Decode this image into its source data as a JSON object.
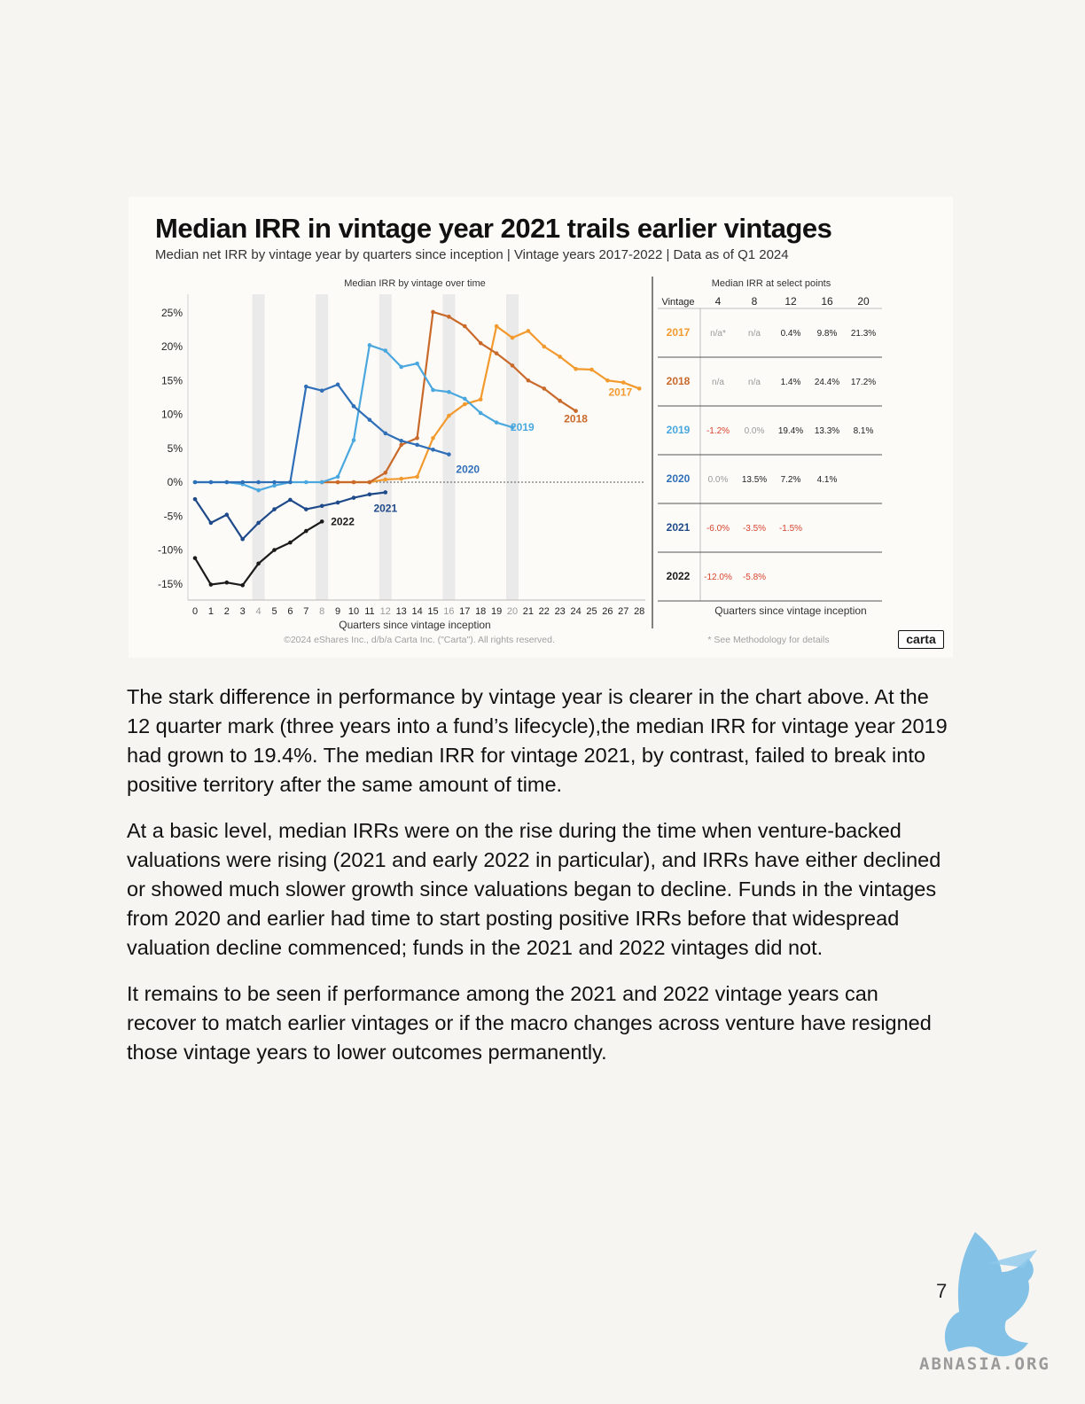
{
  "figure": {
    "title": "Median IRR in vintage year 2021 trails earlier vintages",
    "subtitle": "Median net IRR by vintage year by quarters since inception | Vintage years 2017-2022 | Data as of Q1 2024",
    "copyright": "©2024 eShares Inc., d/b/a Carta Inc. (\"Carta\"). All rights reserved.",
    "methodology_note": "* See Methodology for details",
    "brand": "carta"
  },
  "chart_data": [
    {
      "type": "line",
      "title": "Median IRR by vintage over time",
      "xlabel": "Quarters since vintage inception",
      "ylabel": "",
      "x": [
        0,
        1,
        2,
        3,
        4,
        5,
        6,
        7,
        8,
        9,
        10,
        11,
        12,
        13,
        14,
        15,
        16,
        17,
        18,
        19,
        20,
        21,
        22,
        23,
        24,
        25,
        26,
        27,
        28
      ],
      "xlim": [
        0,
        28
      ],
      "ylim": [
        -15,
        25
      ],
      "yticks": [
        "25%",
        "20%",
        "15%",
        "10%",
        "5%",
        "0%",
        "-5%",
        "-10%",
        "-15%"
      ],
      "highlighted_quarters": [
        4,
        8,
        12,
        16,
        20
      ],
      "zero_line": "dashed",
      "series": [
        {
          "name": "2017",
          "color": "#f29a2e",
          "x": [
            8,
            9,
            10,
            11,
            12,
            13,
            14,
            15,
            16,
            17,
            18,
            19,
            20,
            21,
            22,
            23,
            24,
            25,
            26,
            27,
            28
          ],
          "values": [
            0,
            0,
            0,
            0,
            0.4,
            0.5,
            0.8,
            6.5,
            9.8,
            11.5,
            12.2,
            23.0,
            21.3,
            22.3,
            20.0,
            18.5,
            16.7,
            16.6,
            15.0,
            14.7,
            13.8
          ]
        },
        {
          "name": "2018",
          "color": "#c9692a",
          "x": [
            8,
            9,
            10,
            11,
            12,
            13,
            14,
            15,
            16,
            17,
            18,
            19,
            20,
            21,
            22,
            23,
            24
          ],
          "values": [
            0,
            0,
            0,
            0,
            1.4,
            5.5,
            6.5,
            25.1,
            24.4,
            23.0,
            20.5,
            19.0,
            17.2,
            15.0,
            13.8,
            12.0,
            10.5
          ]
        },
        {
          "name": "2019",
          "color": "#4ba8df",
          "x": [
            0,
            1,
            2,
            3,
            4,
            5,
            6,
            7,
            8,
            9,
            10,
            11,
            12,
            13,
            14,
            15,
            16,
            17,
            18,
            19,
            20
          ],
          "values": [
            0,
            0,
            0,
            -0.3,
            -1.2,
            -0.5,
            0,
            0,
            0,
            0.8,
            6.2,
            20.2,
            19.4,
            17.0,
            17.5,
            13.6,
            13.3,
            12.3,
            10.2,
            8.8,
            8.1
          ]
        },
        {
          "name": "2020",
          "color": "#2f6fb8",
          "x": [
            0,
            1,
            2,
            3,
            4,
            5,
            6,
            7,
            8,
            9,
            10,
            11,
            12,
            13,
            14,
            15,
            16
          ],
          "values": [
            0,
            0,
            0,
            0,
            0,
            0,
            0,
            14.1,
            13.5,
            14.4,
            11.2,
            9.2,
            7.2,
            6.1,
            5.5,
            4.8,
            4.1
          ]
        },
        {
          "name": "2021",
          "color": "#1f4a8a",
          "x": [
            0,
            1,
            2,
            3,
            4,
            5,
            6,
            7,
            8,
            9,
            10,
            11,
            12
          ],
          "values": [
            -2.5,
            -6.0,
            -4.8,
            -8.4,
            -6.0,
            -4.0,
            -2.6,
            -4.0,
            -3.5,
            -3.0,
            -2.3,
            -1.8,
            -1.5
          ]
        },
        {
          "name": "2022",
          "color": "#1b1b1b",
          "x": [
            0,
            1,
            2,
            3,
            4,
            5,
            6,
            7,
            8
          ],
          "values": [
            -11.2,
            -15.1,
            -14.8,
            -15.2,
            -12.0,
            -10.0,
            -8.9,
            -7.2,
            -5.8
          ]
        }
      ]
    },
    {
      "type": "table",
      "title": "Median IRR at select points",
      "xlabel": "Quarters since vintage inception",
      "columns": [
        "Vintage",
        "4",
        "8",
        "12",
        "16",
        "20"
      ],
      "rows": [
        {
          "vintage": "2017",
          "color": "#f29a2e",
          "cells": [
            {
              "text": "n/a*",
              "tone": "muted"
            },
            {
              "text": "n/a",
              "tone": "muted"
            },
            {
              "text": "0.4%",
              "tone": "dark"
            },
            {
              "text": "9.8%",
              "tone": "dark"
            },
            {
              "text": "21.3%",
              "tone": "dark"
            }
          ]
        },
        {
          "vintage": "2018",
          "color": "#c9692a",
          "cells": [
            {
              "text": "n/a",
              "tone": "muted"
            },
            {
              "text": "n/a",
              "tone": "muted"
            },
            {
              "text": "1.4%",
              "tone": "dark"
            },
            {
              "text": "24.4%",
              "tone": "dark"
            },
            {
              "text": "17.2%",
              "tone": "dark"
            }
          ]
        },
        {
          "vintage": "2019",
          "color": "#4ba8df",
          "cells": [
            {
              "text": "-1.2%",
              "tone": "neg"
            },
            {
              "text": "0.0%",
              "tone": "muted"
            },
            {
              "text": "19.4%",
              "tone": "dark"
            },
            {
              "text": "13.3%",
              "tone": "dark"
            },
            {
              "text": "8.1%",
              "tone": "dark"
            }
          ]
        },
        {
          "vintage": "2020",
          "color": "#2f6fb8",
          "cells": [
            {
              "text": "0.0%",
              "tone": "muted"
            },
            {
              "text": "13.5%",
              "tone": "dark"
            },
            {
              "text": "7.2%",
              "tone": "dark"
            },
            {
              "text": "4.1%",
              "tone": "dark"
            },
            {
              "text": "",
              "tone": "dark"
            }
          ]
        },
        {
          "vintage": "2021",
          "color": "#1f4a8a",
          "cells": [
            {
              "text": "-6.0%",
              "tone": "neg"
            },
            {
              "text": "-3.5%",
              "tone": "neg"
            },
            {
              "text": "-1.5%",
              "tone": "neg"
            },
            {
              "text": "",
              "tone": "dark"
            },
            {
              "text": "",
              "tone": "dark"
            }
          ]
        },
        {
          "vintage": "2022",
          "color": "#1b1b1b",
          "cells": [
            {
              "text": "-12.0%",
              "tone": "neg"
            },
            {
              "text": "-5.8%",
              "tone": "neg"
            },
            {
              "text": "",
              "tone": "dark"
            },
            {
              "text": "",
              "tone": "dark"
            },
            {
              "text": "",
              "tone": "dark"
            }
          ]
        }
      ]
    }
  ],
  "tone_colors": {
    "muted": "#9a9a9a",
    "dark": "#222222",
    "neg": "#d8432f"
  },
  "paragraphs": [
    "The stark difference in performance by vintage year is clearer in the chart above. At the 12 quarter mark (three years into a fund’s lifecycle),the median IRR for vintage year 2019 had grown to 19.4%. The median IRR for vintage 2021, by contrast, failed to break into positive territory after the same amount of time.",
    "At a basic level, median IRRs were on the rise during the time when venture-backed valuations were rising (2021 and early 2022 in particular), and IRRs have either declined or showed much slower growth since valuations began to decline. Funds in the vintages from 2020 and earlier had time to start posting positive IRRs before that widespread valuation decline commenced; funds in the 2021 and 2022 vintages did not.",
    "It remains to be seen if performance among the 2021 and 2022 vintage years can recover to match earlier vintages or if the macro changes across venture have resigned those vintage years to lower outcomes permanently."
  ],
  "page_number": "7",
  "watermark": {
    "text": "ABNASIA.ORG",
    "icon": "bird-logo-icon"
  }
}
